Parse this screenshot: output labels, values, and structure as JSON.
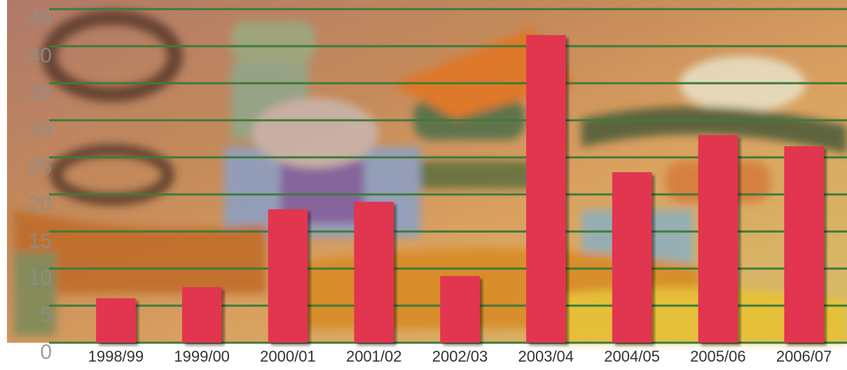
{
  "chart_data": {
    "type": "bar",
    "categories": [
      "1998/99",
      "1999/00",
      "2000/01",
      "2001/02",
      "2002/03",
      "2003/04",
      "2004/05",
      "2005/06",
      "2006/07"
    ],
    "values": [
      6,
      7.5,
      18,
      19,
      9,
      41.5,
      23,
      28,
      26.5
    ],
    "color": "#e2354f",
    "ylim": [
      0,
      45
    ],
    "yticks": [
      0,
      5,
      10,
      15,
      20,
      25,
      30,
      35,
      40,
      45
    ],
    "grid": true,
    "grid_color": "#3f7a3a"
  }
}
